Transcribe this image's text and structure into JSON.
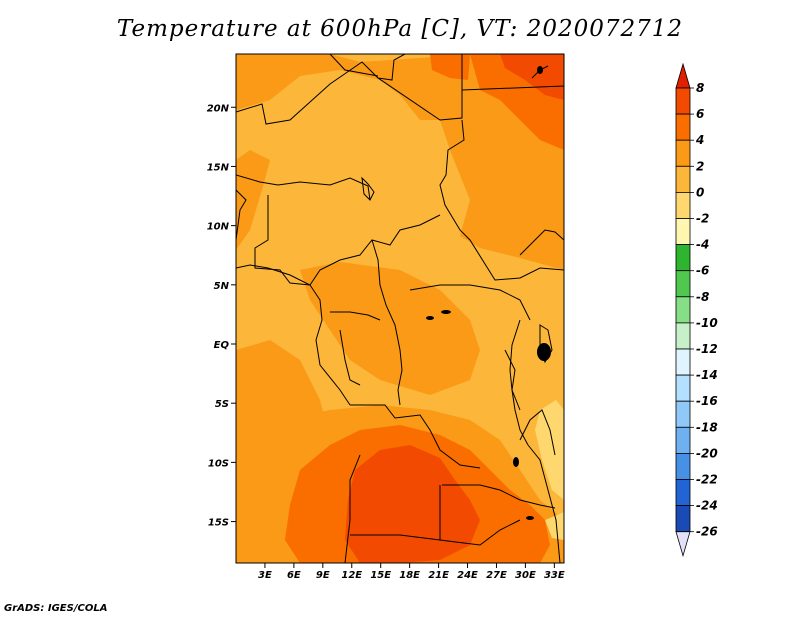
{
  "title": "Temperature at 600hPa [C], VT: 2020072712",
  "credit": "GrADS: IGES/COLA",
  "lat_labels": [
    {
      "label": "20N",
      "value": 20
    },
    {
      "label": "15N",
      "value": 15
    },
    {
      "label": "10N",
      "value": 10
    },
    {
      "label": "5N",
      "value": 5
    },
    {
      "label": "EQ",
      "value": 0
    },
    {
      "label": "5S",
      "value": -5
    },
    {
      "label": "10S",
      "value": -10
    },
    {
      "label": "15S",
      "value": -15
    }
  ],
  "lon_labels": [
    {
      "label": "3E",
      "value": 3
    },
    {
      "label": "6E",
      "value": 6
    },
    {
      "label": "9E",
      "value": 9
    },
    {
      "label": "12E",
      "value": 12
    },
    {
      "label": "15E",
      "value": 15
    },
    {
      "label": "18E",
      "value": 18
    },
    {
      "label": "21E",
      "value": 21
    },
    {
      "label": "24E",
      "value": 24
    },
    {
      "label": "27E",
      "value": 27
    },
    {
      "label": "30E",
      "value": 30
    },
    {
      "label": "33E",
      "value": 33
    }
  ],
  "colorbar": {
    "labels": [
      "8",
      "6",
      "4",
      "2",
      "0",
      "-2",
      "-4",
      "-6",
      "-8",
      "-10",
      "-12",
      "-14",
      "-16",
      "-18",
      "-20",
      "-22",
      "-24",
      "-26"
    ],
    "colors": [
      "#e02000",
      "#f24a00",
      "#fa6e00",
      "#fa9a16",
      "#fcb63a",
      "#fed86e",
      "#fff6b0",
      "#2eb42e",
      "#50c850",
      "#86de86",
      "#c8f0c8",
      "#e0f4ff",
      "#b4e0ff",
      "#90c8f8",
      "#6eb0f0",
      "#4690e6",
      "#2264d4",
      "#1a4ab4",
      "#0c2890",
      "#0a0a60",
      "#e0e0f8"
    ]
  },
  "map": {
    "lon_range": [
      0,
      34
    ],
    "lat_range": [
      -18.5,
      24.5
    ],
    "base_color": "#fcb63a"
  }
}
